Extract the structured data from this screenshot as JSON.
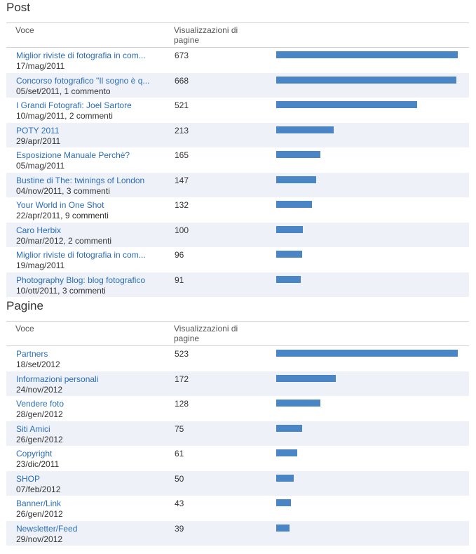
{
  "colors": {
    "bar": "#4a86c5",
    "link": "#2a6db8",
    "row_alt": "#eef2f8"
  },
  "post": {
    "title": "Post",
    "col_voce": "Voce",
    "col_views": "Visualizzazioni di pagine",
    "max": 673,
    "rows": [
      {
        "title": "Miglior riviste di fotografia in com...",
        "meta": "17/mag/2011",
        "count": "673",
        "value": 673
      },
      {
        "title": "Concorso fotografico \"Il sogno è q...",
        "meta": "05/set/2011, 1 commento",
        "count": "668",
        "value": 668
      },
      {
        "title": "I Grandi Fotografi: Joel Sartore",
        "meta": "10/mag/2011, 2 commenti",
        "count": "521",
        "value": 521
      },
      {
        "title": "POTY 2011",
        "meta": "29/apr/2011",
        "count": "213",
        "value": 213
      },
      {
        "title": "Esposizione Manuale Perchè?",
        "meta": "05/mag/2011",
        "count": "165",
        "value": 165
      },
      {
        "title": "Bustine di The: twinings of London",
        "meta": "04/nov/2011, 3 commenti",
        "count": "147",
        "value": 147
      },
      {
        "title": "Your World in One Shot",
        "meta": "22/apr/2011, 9 commenti",
        "count": "132",
        "value": 132
      },
      {
        "title": "Caro Herbix",
        "meta": "20/mar/2012, 2 commenti",
        "count": "100",
        "value": 100
      },
      {
        "title": "Miglior riviste di fotografia in com...",
        "meta": "19/mag/2011",
        "count": "96",
        "value": 96
      },
      {
        "title": "Photography Blog: blog fotografico",
        "meta": "10/ott/2011, 3 commenti",
        "count": "91",
        "value": 91
      }
    ]
  },
  "pagine": {
    "title": "Pagine",
    "col_voce": "Voce",
    "col_views": "Visualizzazioni di pagine",
    "max": 523,
    "rows": [
      {
        "title": "Partners",
        "meta": "18/set/2012",
        "count": "523",
        "value": 523
      },
      {
        "title": "Informazioni personali",
        "meta": "24/nov/2012",
        "count": "172",
        "value": 172
      },
      {
        "title": "Vendere foto",
        "meta": "28/gen/2012",
        "count": "128",
        "value": 128
      },
      {
        "title": "Siti Amici",
        "meta": "26/gen/2012",
        "count": "75",
        "value": 75
      },
      {
        "title": "Copyright",
        "meta": "23/dic/2011",
        "count": "61",
        "value": 61
      },
      {
        "title": "SHOP",
        "meta": "07/feb/2012",
        "count": "50",
        "value": 50
      },
      {
        "title": "Banner/Link",
        "meta": "26/gen/2012",
        "count": "43",
        "value": 43
      },
      {
        "title": "Newsletter/Feed",
        "meta": "29/nov/2012",
        "count": "39",
        "value": 39
      }
    ]
  }
}
